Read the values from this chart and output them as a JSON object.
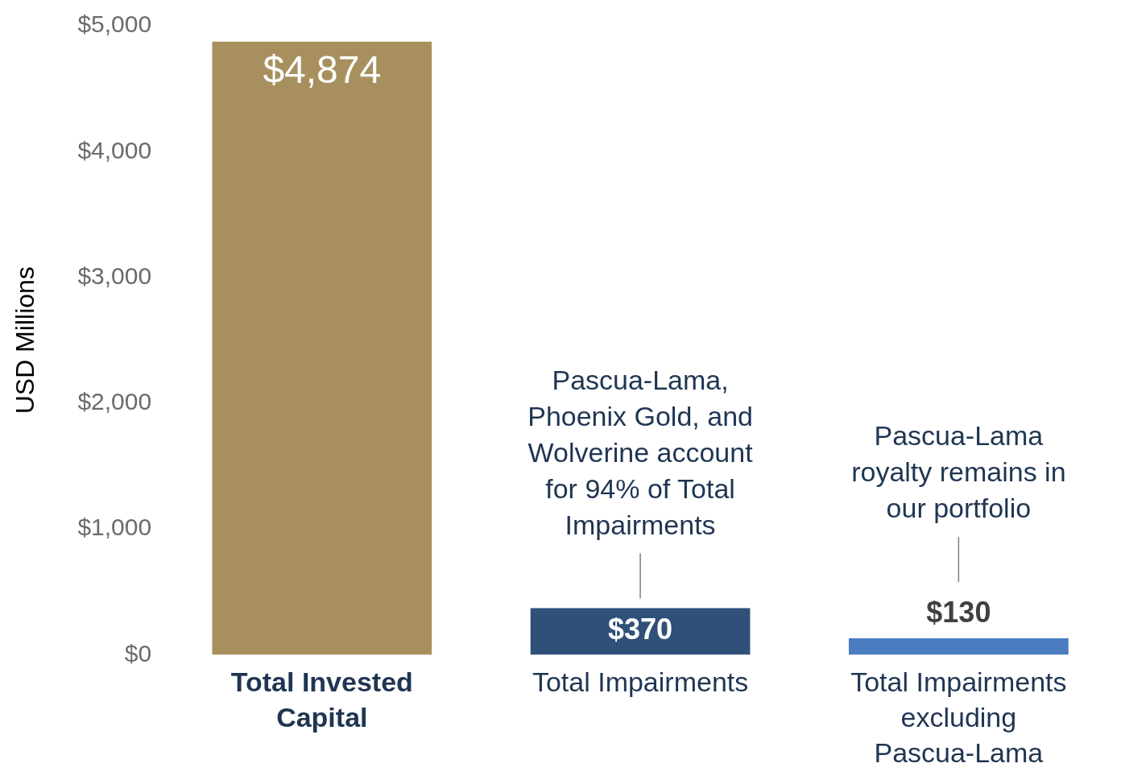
{
  "chart_data": {
    "type": "bar",
    "ylabel": "USD Millions",
    "categories": [
      "Total Invested Capital",
      "Total Impairments",
      "Total Impairments excluding Pascua-Lama"
    ],
    "values": [
      4874,
      370,
      130
    ],
    "colors": [
      "#a8905e",
      "#2f5079",
      "#4a7cbf"
    ],
    "value_labels": [
      "$4,874",
      "$370",
      "$130"
    ],
    "ylim": [
      0,
      5000
    ],
    "yticks": [
      {
        "value": 0,
        "label": "$0"
      },
      {
        "value": 1000,
        "label": "$1,000"
      },
      {
        "value": 2000,
        "label": "$2,000"
      },
      {
        "value": 3000,
        "label": "$3,000"
      },
      {
        "value": 4000,
        "label": "$4,000"
      },
      {
        "value": 5000,
        "label": "$5,000"
      }
    ],
    "annotations": [
      {
        "text": "Pascua-Lama, Phoenix Gold, and Wolverine account for 94% of Total Impairments",
        "x": "Total Impairments",
        "y": 370
      },
      "Pascua-Lama royalty remains in our portfolio"
    ],
    "grid": false,
    "legend": false
  }
}
